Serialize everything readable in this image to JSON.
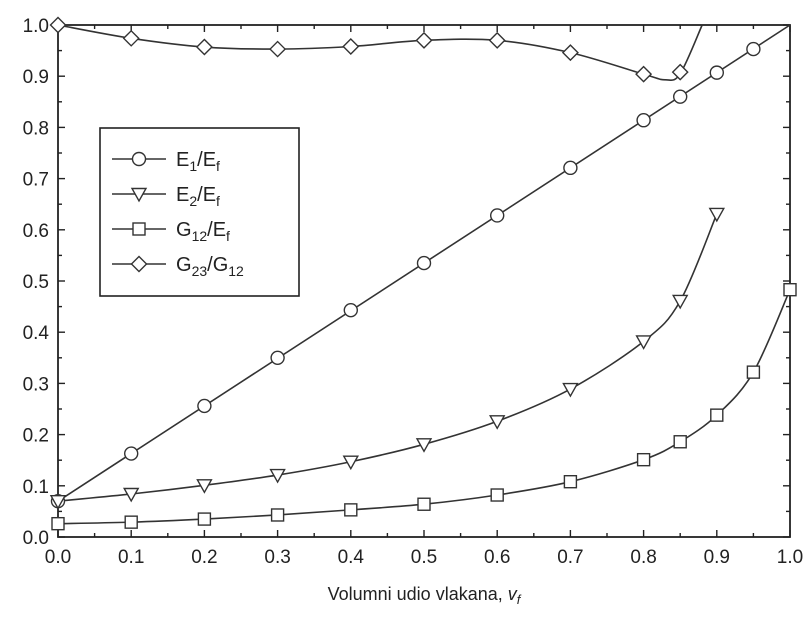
{
  "chart_data": {
    "type": "line",
    "xlabel": "Volumni udio vlakana, ",
    "xlabel_var": "v",
    "xlabel_sub": "f",
    "xlim": [
      0.0,
      1.0
    ],
    "ylim": [
      0.0,
      1.0
    ],
    "xticks": [
      "0.0",
      "0.1",
      "0.2",
      "0.3",
      "0.4",
      "0.5",
      "0.6",
      "0.7",
      "0.8",
      "0.9",
      "1.0"
    ],
    "yticks": [
      "0.0",
      "0.1",
      "0.2",
      "0.3",
      "0.4",
      "0.5",
      "0.6",
      "0.7",
      "0.8",
      "0.9",
      "1.0"
    ],
    "grid": false,
    "legend_position": "left",
    "series": [
      {
        "name": "E1/Ef",
        "name_main": "E",
        "name_sub": "1",
        "name_main2": "/E",
        "name_sub2": "f",
        "marker": "circle",
        "x": [
          0.0,
          0.1,
          0.2,
          0.3,
          0.4,
          0.5,
          0.6,
          0.7,
          0.8,
          0.85,
          0.9,
          0.95
        ],
        "y": [
          0.07,
          0.163,
          0.256,
          0.35,
          0.443,
          0.535,
          0.628,
          0.721,
          0.814,
          0.86,
          0.907,
          0.953
        ],
        "line_x": [
          0.0,
          1.0
        ],
        "line_y": [
          0.07,
          1.0
        ]
      },
      {
        "name": "E2/Ef",
        "name_main": "E",
        "name_sub": "2",
        "name_main2": "/E",
        "name_sub2": "f",
        "marker": "triangle-down",
        "x": [
          0.0,
          0.1,
          0.2,
          0.3,
          0.4,
          0.5,
          0.6,
          0.7,
          0.8,
          0.85,
          0.9
        ],
        "y": [
          0.07,
          0.084,
          0.101,
          0.121,
          0.147,
          0.181,
          0.226,
          0.289,
          0.382,
          0.461,
          0.631
        ],
        "line_x": [
          0.0,
          0.1,
          0.2,
          0.3,
          0.4,
          0.5,
          0.6,
          0.7,
          0.8,
          0.85,
          0.9
        ],
        "line_y": [
          0.07,
          0.084,
          0.101,
          0.121,
          0.147,
          0.181,
          0.226,
          0.289,
          0.382,
          0.461,
          0.631
        ]
      },
      {
        "name": "G12/Ef",
        "name_main": "G",
        "name_sub": "12",
        "name_main2": "/E",
        "name_sub2": "f",
        "marker": "square",
        "x": [
          0.0,
          0.1,
          0.2,
          0.3,
          0.4,
          0.5,
          0.6,
          0.7,
          0.8,
          0.85,
          0.9,
          0.95,
          1.0
        ],
        "y": [
          0.026,
          0.029,
          0.035,
          0.043,
          0.053,
          0.064,
          0.082,
          0.108,
          0.151,
          0.186,
          0.238,
          0.322,
          0.483
        ],
        "line_x": [
          0.0,
          0.1,
          0.2,
          0.3,
          0.4,
          0.5,
          0.6,
          0.7,
          0.8,
          0.85,
          0.9,
          0.95,
          1.0
        ],
        "line_y": [
          0.026,
          0.029,
          0.035,
          0.043,
          0.053,
          0.064,
          0.082,
          0.108,
          0.151,
          0.186,
          0.238,
          0.322,
          0.483
        ]
      },
      {
        "name": "G23/G12",
        "name_main": "G",
        "name_sub": "23",
        "name_main2": "/G",
        "name_sub2": "12",
        "marker": "diamond",
        "x": [
          0.0,
          0.1,
          0.2,
          0.3,
          0.4,
          0.5,
          0.6,
          0.7,
          0.8,
          0.85
        ],
        "y": [
          1.0,
          0.974,
          0.957,
          0.953,
          0.958,
          0.97,
          0.97,
          0.946,
          0.904,
          0.908
        ],
        "line_x": [
          0.0,
          0.1,
          0.2,
          0.3,
          0.4,
          0.5,
          0.6,
          0.7,
          0.8,
          0.83,
          0.85,
          0.88
        ],
        "line_y": [
          1.0,
          0.974,
          0.957,
          0.953,
          0.958,
          0.97,
          0.97,
          0.946,
          0.904,
          0.893,
          0.905,
          1.0
        ]
      }
    ]
  }
}
